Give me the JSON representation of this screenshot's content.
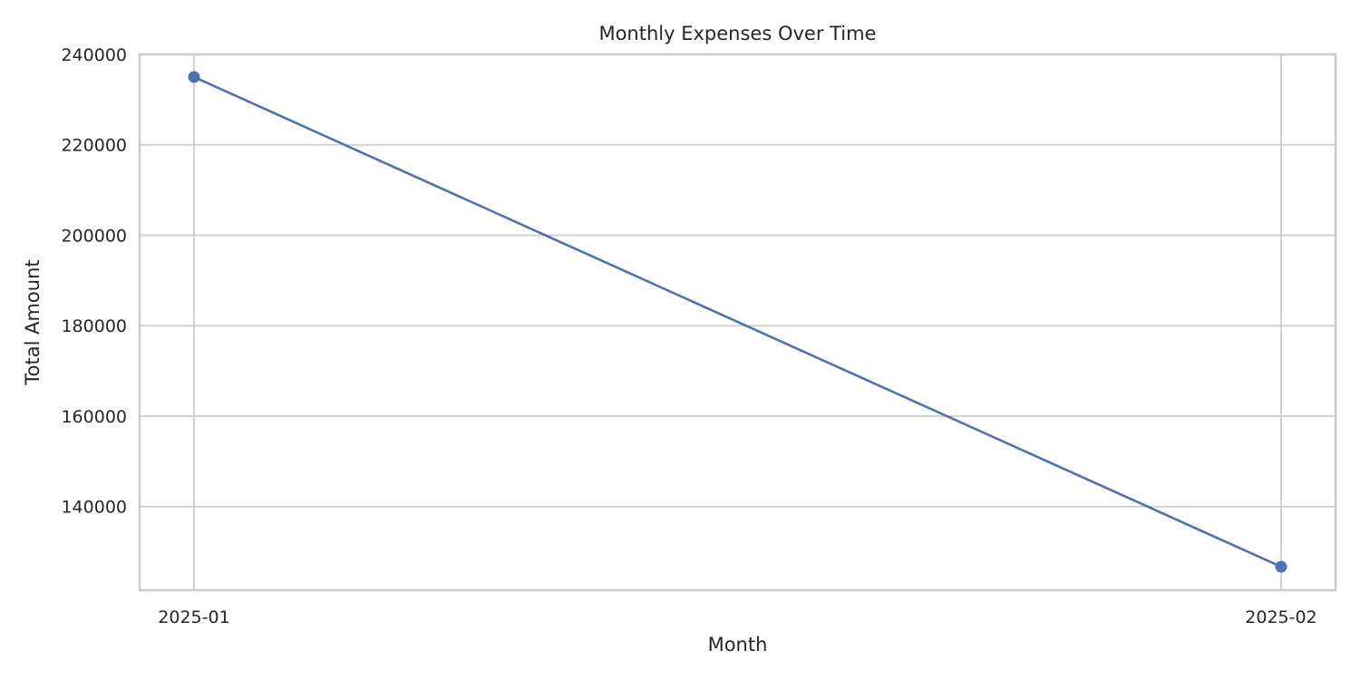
{
  "chart_data": {
    "type": "line",
    "title": "Monthly Expenses Over Time",
    "xlabel": "Month",
    "ylabel": "Total Amount",
    "categories": [
      "2025-01",
      "2025-02"
    ],
    "series": [
      {
        "values": [
          235000,
          126700
        ],
        "color": "#4c72b0",
        "marker": "circle"
      }
    ],
    "ylim": [
      121500,
      240000
    ],
    "yticks": [
      140000,
      160000,
      180000,
      200000,
      220000,
      240000
    ],
    "grid": true,
    "legend": "none"
  }
}
